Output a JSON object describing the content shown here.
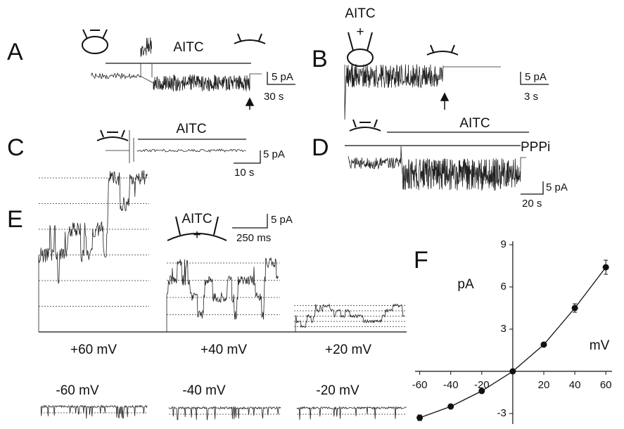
{
  "panels": [
    {
      "label": "A",
      "drug": "AITC",
      "current_scale": "5 pA",
      "time_scale": "30 s"
    },
    {
      "label": "B",
      "drug": "AITC",
      "sign": "+",
      "current_scale": "5 pA",
      "time_scale": "3 s"
    },
    {
      "label": "C",
      "drug": "AITC",
      "current_scale": "5 pA",
      "time_scale": "10 s"
    },
    {
      "label": "D",
      "drug": "AITC",
      "blocker": "PPPi",
      "current_scale": "5 pA",
      "time_scale": "20 s"
    },
    {
      "label": "E",
      "drug": "AITC",
      "sign": "+",
      "current_scale": "5 pA",
      "time_scale": "250 ms",
      "voltages": [
        "+60 mV",
        "+40 mV",
        "+20 mV",
        "-60 mV",
        "-40 mV",
        "-20 mV"
      ]
    }
  ],
  "chart_data": {
    "type": "line",
    "panel_label": "F",
    "xlabel": "mV",
    "ylabel": "pA",
    "x": [
      -60,
      -40,
      -20,
      0,
      20,
      40,
      60
    ],
    "values": [
      -3.3,
      -2.5,
      -1.4,
      0,
      1.9,
      4.5,
      7.4
    ],
    "errors": [
      0.2,
      0.1,
      0.1,
      0,
      0.1,
      0.3,
      0.5
    ],
    "xlim": [
      -63,
      64
    ],
    "ylim": [
      -3.75,
      9.25
    ],
    "xticks": [
      -60,
      -40,
      -20,
      20,
      40,
      60
    ],
    "yticks": [
      -3,
      3,
      6,
      9
    ],
    "color": "#111111"
  }
}
